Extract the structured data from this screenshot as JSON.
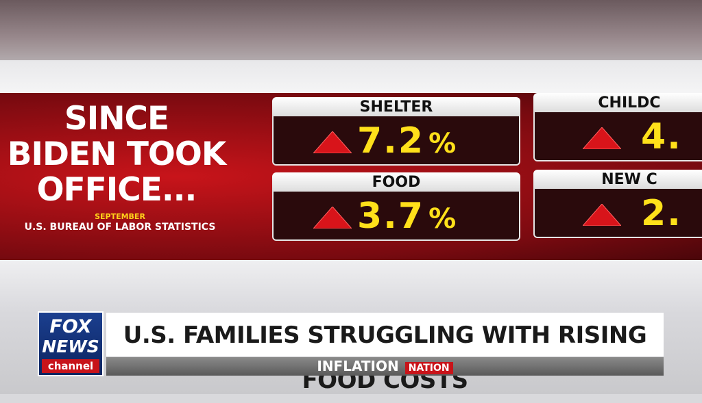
{
  "graphic": {
    "headline": [
      "SINCE",
      "BIDEN TOOK",
      "OFFICE..."
    ],
    "period": "SEPTEMBER",
    "source": "U.S. BUREAU OF LABOR STATISTICS",
    "cards": [
      {
        "label": "SHELTER",
        "value": "7.2",
        "unit": "%"
      },
      {
        "label": "FOOD",
        "value": "3.7",
        "unit": "%"
      },
      {
        "label": "CHILDC",
        "value": "4."
      },
      {
        "label": "NEW C",
        "value": "2."
      }
    ]
  },
  "lower_third": {
    "logo": [
      "FOX",
      "NEWS",
      "channel"
    ],
    "headline": "U.S. FAMILIES STRUGGLING WITH RISING FOOD COSTS",
    "banner": [
      "INFLATION",
      "NATION"
    ]
  }
}
